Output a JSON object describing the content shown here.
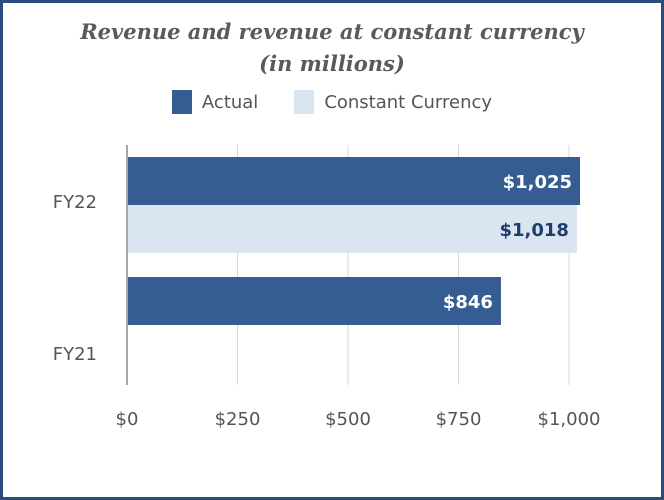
{
  "chart_data": {
    "type": "bar",
    "orientation": "horizontal",
    "title_lines": [
      "Revenue and revenue at constant currency",
      "(in millions)"
    ],
    "categories": [
      "FY22",
      "FY21"
    ],
    "series": [
      {
        "name": "Actual",
        "color": "#355d91",
        "label_color": "#ffffff",
        "values": [
          1025,
          846
        ],
        "labels": [
          "$1,025",
          "$846"
        ]
      },
      {
        "name": "Constant Currency",
        "color": "#dbe5f1",
        "label_color": "#1f3d6b",
        "values": [
          1018,
          null
        ],
        "labels": [
          "$1,018",
          ""
        ]
      }
    ],
    "xlim": [
      0,
      1000
    ],
    "xticks": [
      0,
      250,
      500,
      750,
      1000
    ],
    "xtick_labels": [
      "$0",
      "$250",
      "$500",
      "$750",
      "$1,000"
    ],
    "grid": true,
    "legend_position": "top-center"
  },
  "frame_color": "#2b4c7e"
}
